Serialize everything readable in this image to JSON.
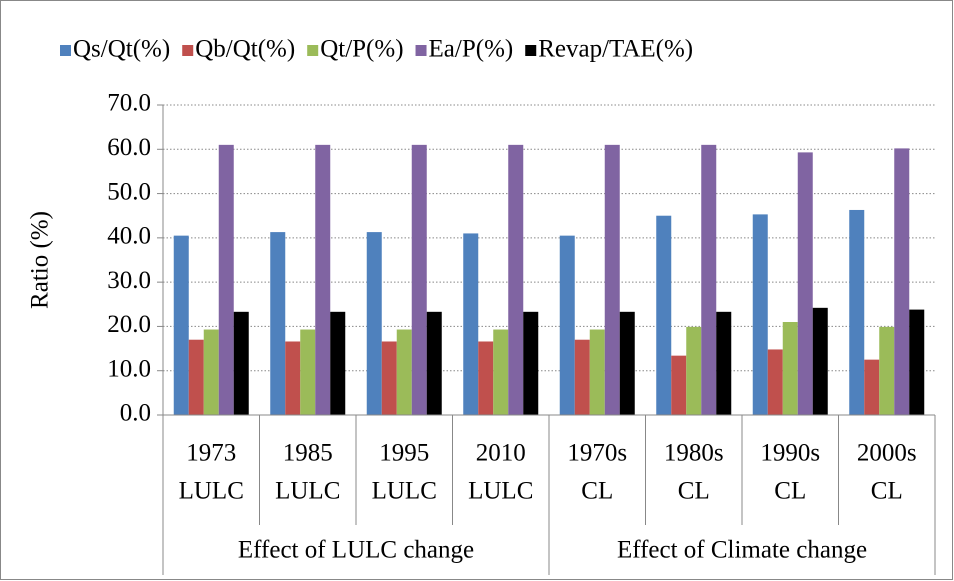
{
  "chart_data": {
    "type": "bar",
    "y_label": "Ratio (%)",
    "groups": [
      {
        "name": "Effect of LULC change",
        "categories": [
          [
            "1973",
            "LULC"
          ],
          [
            "1985",
            "LULC"
          ],
          [
            "1995",
            "LULC"
          ],
          [
            "2010",
            "LULC"
          ]
        ]
      },
      {
        "name": "Effect of Climate change",
        "categories": [
          [
            "1970s",
            "CL"
          ],
          [
            "1980s",
            "CL"
          ],
          [
            "1990s",
            "CL"
          ],
          [
            "2000s",
            "CL"
          ]
        ]
      }
    ],
    "series": [
      {
        "name": "Qs/Qt(%)",
        "color": "#4f81bd",
        "values": [
          40.5,
          41.3,
          41.3,
          41.0,
          40.5,
          45.0,
          45.3,
          46.3
        ]
      },
      {
        "name": "Qb/Qt(%)",
        "color": "#c0504d",
        "values": [
          17.0,
          16.6,
          16.6,
          16.6,
          17.0,
          13.4,
          14.8,
          12.5
        ]
      },
      {
        "name": "Qt/P(%)",
        "color": "#9bbb59",
        "values": [
          19.3,
          19.3,
          19.3,
          19.3,
          19.3,
          19.9,
          21.0,
          19.9
        ]
      },
      {
        "name": "Ea/P(%)",
        "color": "#8064a2",
        "values": [
          61.0,
          61.0,
          61.0,
          61.0,
          61.0,
          61.0,
          59.3,
          60.2
        ]
      },
      {
        "name": "Revap/TAE(%)",
        "color": "#000000",
        "values": [
          23.3,
          23.3,
          23.3,
          23.3,
          23.3,
          23.3,
          24.2,
          23.8
        ]
      }
    ],
    "ylim": [
      0,
      70
    ],
    "yticks": [
      {
        "value": 0,
        "label": "0.0"
      },
      {
        "value": 10,
        "label": "10.0"
      },
      {
        "value": 20,
        "label": "20.0"
      },
      {
        "value": 30,
        "label": "30.0"
      },
      {
        "value": 40,
        "label": "40.0"
      },
      {
        "value": 50,
        "label": "50.0"
      },
      {
        "value": 60,
        "label": "60.0"
      },
      {
        "value": 70,
        "label": "70.0"
      }
    ],
    "grid": true,
    "legend": "top"
  }
}
